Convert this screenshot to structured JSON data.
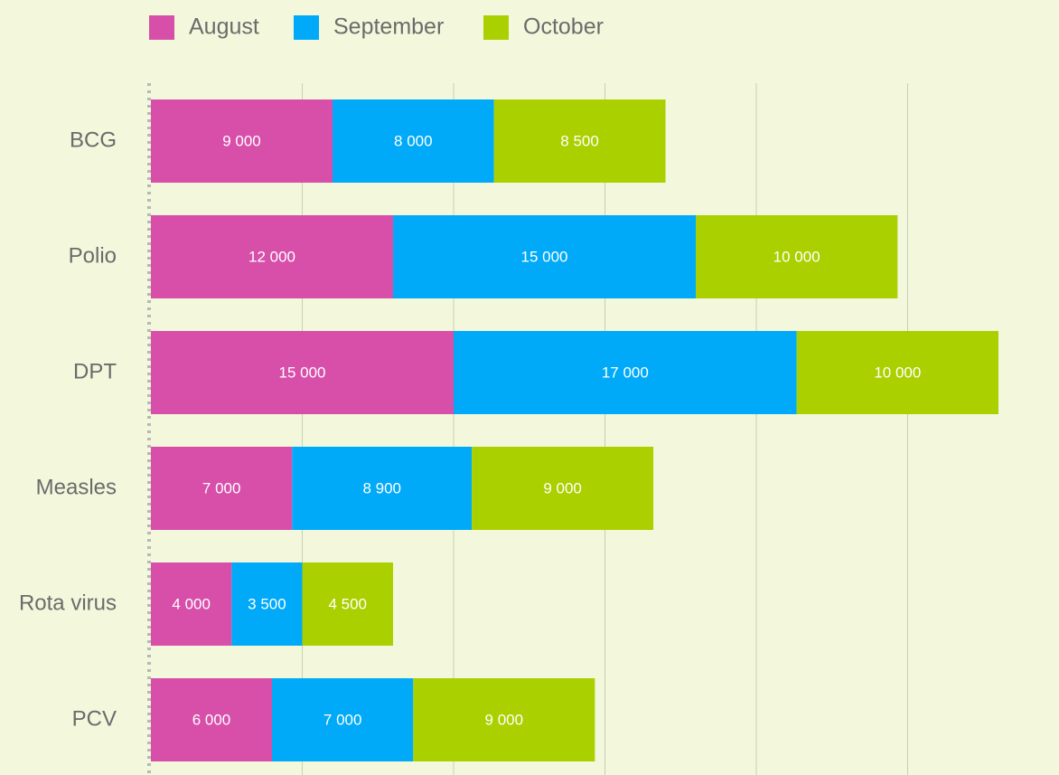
{
  "chart_data": {
    "type": "stacked-barh",
    "categories": [
      "BCG",
      "Polio",
      "DPT",
      "Measles",
      "Rota virus",
      "PCV"
    ],
    "series": [
      {
        "name": "August",
        "color": "#d84faa",
        "values": [
          9000,
          12000,
          15000,
          7000,
          4000,
          6000
        ],
        "value_labels": [
          "9 000",
          "12 000",
          "15 000",
          "7 000",
          "4 000",
          "6 000"
        ]
      },
      {
        "name": "September",
        "color": "#00aaf8",
        "values": [
          8000,
          15000,
          17000,
          8900,
          3500,
          7000
        ],
        "value_labels": [
          "8 000",
          "15 000",
          "17 000",
          "8 900",
          "3 500",
          "7 000"
        ]
      },
      {
        "name": "October",
        "color": "#aad000",
        "values": [
          8500,
          10000,
          10000,
          9000,
          4500,
          9000
        ],
        "value_labels": [
          "8 500",
          "10 000",
          "10 000",
          "9 000",
          "4 500",
          "9 000"
        ]
      }
    ],
    "xlim": [
      0,
      45000
    ],
    "xticks": [
      7500,
      15000,
      22500,
      30000,
      37500
    ],
    "grid": true,
    "legend": "top"
  }
}
